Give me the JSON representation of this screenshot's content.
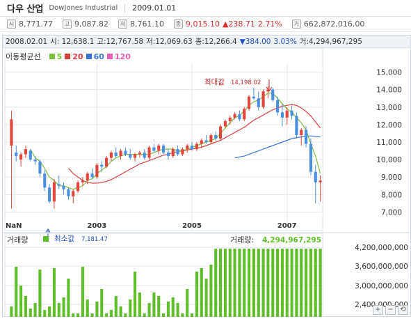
{
  "header": {
    "title": "다우 산업",
    "subtitle": "DowJones Industrial",
    "date": "2009.01.01"
  },
  "summary": {
    "open_icon": "시",
    "open": "8,771.77",
    "high_icon": "고",
    "high": "9,087.82",
    "low_icon": "저",
    "low": "8,761.10",
    "close_icon": "종",
    "close": "9,015.10",
    "change": "▲238.71",
    "change_pct": "2.71%",
    "volume_icon": "거",
    "volume": "662,872,016.00"
  },
  "info_bar": {
    "date": "2008.02.01",
    "open": "시: 12,638.1",
    "high": "고:12,767.58",
    "low": "저:12,069.63",
    "close": "종:12,266.4",
    "change": "▼384.00",
    "change_pct": "3.03%",
    "volume": "거:4,294,967,295"
  },
  "moving_averages": {
    "label": "이동평균선",
    "items": [
      {
        "period": "5",
        "color": "#7cbf3a"
      },
      {
        "period": "20",
        "color": "#d94040"
      },
      {
        "period": "60",
        "color": "#3a73d6"
      },
      {
        "period": "120",
        "color": "#e55fb2"
      }
    ]
  },
  "annotations": {
    "max_label": "최대값",
    "max_value": "14,198.02",
    "min_label": "최소값",
    "min_value": "7,181.47"
  },
  "volume_panel": {
    "label": "거래량",
    "value_label": "거래량:",
    "value": "4,294,967,295",
    "legend_color": "#5fbf2a"
  },
  "colors": {
    "up": "#e0463c",
    "down": "#4a8fe0",
    "ma5": "#7cbf3a",
    "ma20": "#d94040",
    "ma60": "#3a73d6",
    "volume": "#5fbf2a",
    "grid": "#e6e6e6"
  },
  "chart_data": {
    "type": "candlestick",
    "price_axis": {
      "ticks": [
        "15,000",
        "14,000",
        "13,000",
        "12,000",
        "11,000",
        "10,000",
        "9,000",
        "8,000",
        "7,000"
      ],
      "range": [
        6500,
        15500
      ]
    },
    "x_ticks": [
      "NaN",
      "2003",
      "2005",
      "2007"
    ],
    "volume_axis": {
      "ticks": [
        "4,200,000,000",
        "3,600,000,000",
        "3,000,000,000",
        "2,400,000,000"
      ]
    },
    "candles": [
      {
        "o": 10800,
        "h": 12800,
        "l": 7200,
        "c": 12300
      },
      {
        "o": 10400,
        "h": 10800,
        "l": 9900,
        "c": 10200
      },
      {
        "o": 10000,
        "h": 10400,
        "l": 9600,
        "c": 10300
      },
      {
        "o": 10300,
        "h": 10800,
        "l": 10100,
        "c": 10600
      },
      {
        "o": 10500,
        "h": 10600,
        "l": 9900,
        "c": 10000
      },
      {
        "o": 10000,
        "h": 10200,
        "l": 9700,
        "c": 9900
      },
      {
        "o": 9900,
        "h": 10000,
        "l": 9000,
        "c": 9200
      },
      {
        "o": 9200,
        "h": 9400,
        "l": 8200,
        "c": 8400
      },
      {
        "o": 8400,
        "h": 8600,
        "l": 7500,
        "c": 7600
      },
      {
        "o": 7600,
        "h": 8900,
        "l": 7200,
        "c": 8700
      },
      {
        "o": 8600,
        "h": 9100,
        "l": 8300,
        "c": 8500
      },
      {
        "o": 8500,
        "h": 8700,
        "l": 8000,
        "c": 8300
      },
      {
        "o": 8300,
        "h": 8400,
        "l": 7700,
        "c": 7900
      },
      {
        "o": 7900,
        "h": 8300,
        "l": 7500,
        "c": 8200
      },
      {
        "o": 8200,
        "h": 8800,
        "l": 8100,
        "c": 8700
      },
      {
        "o": 8700,
        "h": 9000,
        "l": 8500,
        "c": 8800
      },
      {
        "o": 8800,
        "h": 9300,
        "l": 8600,
        "c": 9200
      },
      {
        "o": 9200,
        "h": 9500,
        "l": 8900,
        "c": 9000
      },
      {
        "o": 9000,
        "h": 9800,
        "l": 8900,
        "c": 9700
      },
      {
        "o": 9700,
        "h": 9900,
        "l": 9300,
        "c": 9600
      },
      {
        "o": 9600,
        "h": 10200,
        "l": 9500,
        "c": 10100
      },
      {
        "o": 10100,
        "h": 10500,
        "l": 9900,
        "c": 10400
      },
      {
        "o": 10400,
        "h": 10700,
        "l": 10100,
        "c": 10200
      },
      {
        "o": 10200,
        "h": 10600,
        "l": 10000,
        "c": 10500
      },
      {
        "o": 10500,
        "h": 10700,
        "l": 10200,
        "c": 10300
      },
      {
        "o": 10300,
        "h": 10600,
        "l": 10000,
        "c": 10100
      },
      {
        "o": 10100,
        "h": 10400,
        "l": 9900,
        "c": 10300
      },
      {
        "o": 10300,
        "h": 10500,
        "l": 10100,
        "c": 10400
      },
      {
        "o": 10400,
        "h": 10600,
        "l": 10000,
        "c": 10100
      },
      {
        "o": 10100,
        "h": 10800,
        "l": 10000,
        "c": 10700
      },
      {
        "o": 10700,
        "h": 10900,
        "l": 10400,
        "c": 10500
      },
      {
        "o": 10500,
        "h": 10900,
        "l": 10300,
        "c": 10800
      },
      {
        "o": 10800,
        "h": 10900,
        "l": 10300,
        "c": 10400
      },
      {
        "o": 10400,
        "h": 10600,
        "l": 10000,
        "c": 10200
      },
      {
        "o": 10200,
        "h": 10700,
        "l": 10100,
        "c": 10600
      },
      {
        "o": 10600,
        "h": 10800,
        "l": 10200,
        "c": 10300
      },
      {
        "o": 10300,
        "h": 10700,
        "l": 10200,
        "c": 10600
      },
      {
        "o": 10600,
        "h": 10900,
        "l": 10400,
        "c": 10800
      },
      {
        "o": 10800,
        "h": 11000,
        "l": 10500,
        "c": 10600
      },
      {
        "o": 10600,
        "h": 11000,
        "l": 10500,
        "c": 10900
      },
      {
        "o": 10900,
        "h": 11200,
        "l": 10700,
        "c": 11100
      },
      {
        "o": 11100,
        "h": 11400,
        "l": 10900,
        "c": 11000
      },
      {
        "o": 11000,
        "h": 11500,
        "l": 10900,
        "c": 11400
      },
      {
        "o": 11400,
        "h": 11600,
        "l": 11100,
        "c": 11200
      },
      {
        "o": 11200,
        "h": 12000,
        "l": 11100,
        "c": 11900
      },
      {
        "o": 11900,
        "h": 12300,
        "l": 11800,
        "c": 12200
      },
      {
        "o": 12200,
        "h": 12500,
        "l": 12000,
        "c": 12400
      },
      {
        "o": 12400,
        "h": 12700,
        "l": 12300,
        "c": 12600
      },
      {
        "o": 12600,
        "h": 12800,
        "l": 12200,
        "c": 12300
      },
      {
        "o": 12300,
        "h": 13000,
        "l": 12200,
        "c": 12900
      },
      {
        "o": 12900,
        "h": 13700,
        "l": 12800,
        "c": 13600
      },
      {
        "o": 13600,
        "h": 14100,
        "l": 13400,
        "c": 13500
      },
      {
        "o": 13500,
        "h": 13900,
        "l": 12800,
        "c": 13000
      },
      {
        "o": 13000,
        "h": 14000,
        "l": 12900,
        "c": 13900
      },
      {
        "o": 13900,
        "h": 14198,
        "l": 13500,
        "c": 14000
      },
      {
        "o": 14000,
        "h": 14100,
        "l": 13300,
        "c": 13400
      },
      {
        "o": 13400,
        "h": 13600,
        "l": 12500,
        "c": 12700
      },
      {
        "o": 12700,
        "h": 13200,
        "l": 11900,
        "c": 12400
      },
      {
        "o": 12400,
        "h": 13000,
        "l": 12000,
        "c": 12800
      },
      {
        "o": 12800,
        "h": 13100,
        "l": 12300,
        "c": 12500
      },
      {
        "o": 12500,
        "h": 12700,
        "l": 11200,
        "c": 11400
      },
      {
        "o": 11400,
        "h": 11800,
        "l": 10800,
        "c": 11700
      },
      {
        "o": 11700,
        "h": 11900,
        "l": 10700,
        "c": 10900
      },
      {
        "o": 10900,
        "h": 11200,
        "l": 9100,
        "c": 9300
      },
      {
        "o": 9300,
        "h": 9700,
        "l": 7500,
        "c": 8700
      },
      {
        "o": 8700,
        "h": 9100,
        "l": 7600,
        "c": 8800
      }
    ],
    "ma5": [
      null,
      null,
      null,
      null,
      10600,
      10100,
      9900,
      9500,
      9000,
      8800,
      8500,
      8500,
      8400,
      8300,
      8400,
      8500,
      8800,
      8900,
      9200,
      9400,
      9600,
      9900,
      10100,
      10200,
      10300,
      10300,
      10300,
      10300,
      10300,
      10300,
      10400,
      10500,
      10600,
      10600,
      10600,
      10500,
      10500,
      10600,
      10700,
      10800,
      10900,
      11000,
      11100,
      11200,
      11500,
      11800,
      12100,
      12400,
      12500,
      12800,
      13100,
      13300,
      13400,
      13600,
      13800,
      13800,
      13500,
      13200,
      12900,
      12700,
      12400,
      12100,
      11700,
      10900,
      10200,
      9200
    ],
    "ma20": [
      null,
      null,
      null,
      null,
      null,
      null,
      null,
      null,
      null,
      null,
      null,
      null,
      9500,
      9200,
      9000,
      8800,
      8700,
      8650,
      8650,
      8700,
      8750,
      8850,
      9000,
      9150,
      9300,
      9450,
      9600,
      9750,
      9850,
      9950,
      10050,
      10150,
      10250,
      10300,
      10400,
      10450,
      10500,
      10550,
      10600,
      10650,
      10700,
      10800,
      10900,
      11000,
      11100,
      11250,
      11400,
      11550,
      11700,
      11850,
      12050,
      12250,
      12400,
      12550,
      12700,
      12850,
      12950,
      13050,
      13100,
      13150,
      13100,
      12950,
      12750,
      12500,
      12150,
      11800
    ],
    "ma60": [
      null,
      null,
      null,
      null,
      null,
      null,
      null,
      null,
      null,
      null,
      null,
      null,
      null,
      null,
      null,
      null,
      null,
      null,
      null,
      null,
      null,
      null,
      null,
      null,
      null,
      null,
      null,
      null,
      null,
      null,
      null,
      null,
      null,
      null,
      null,
      null,
      null,
      null,
      null,
      null,
      null,
      null,
      null,
      null,
      null,
      null,
      null,
      10100,
      10150,
      10200,
      10300,
      10400,
      10500,
      10600,
      10700,
      10800,
      10900,
      11000,
      11100,
      11200,
      11250,
      11300,
      11350,
      11350,
      11330,
      11300
    ],
    "volume_levels": [
      0.15,
      0.72,
      0.45,
      0.3,
      0.12,
      0.2,
      0.68,
      0.1,
      0.15,
      0.7,
      0.2,
      0.28,
      0.55,
      0.05,
      0.05,
      0.72,
      0.25,
      0.05,
      0.22,
      0.4,
      0.05,
      0.1,
      0.3,
      0.15,
      0.05,
      0.25,
      0.65,
      0.35,
      0.05,
      0.2,
      0.35,
      0.3,
      0.05,
      0.22,
      0.28,
      0.2,
      0.05,
      0.4,
      0.05,
      0.65,
      0.7,
      0.55,
      0.75,
      0.98,
      0.98,
      0.98,
      0.98,
      0.98,
      0.98,
      0.98,
      0.98,
      0.98,
      0.98,
      0.98,
      0.98,
      0.98,
      0.98,
      0.98,
      0.98,
      0.98,
      0.98,
      0.98,
      0.98,
      0.98,
      0.98,
      0.98
    ]
  }
}
